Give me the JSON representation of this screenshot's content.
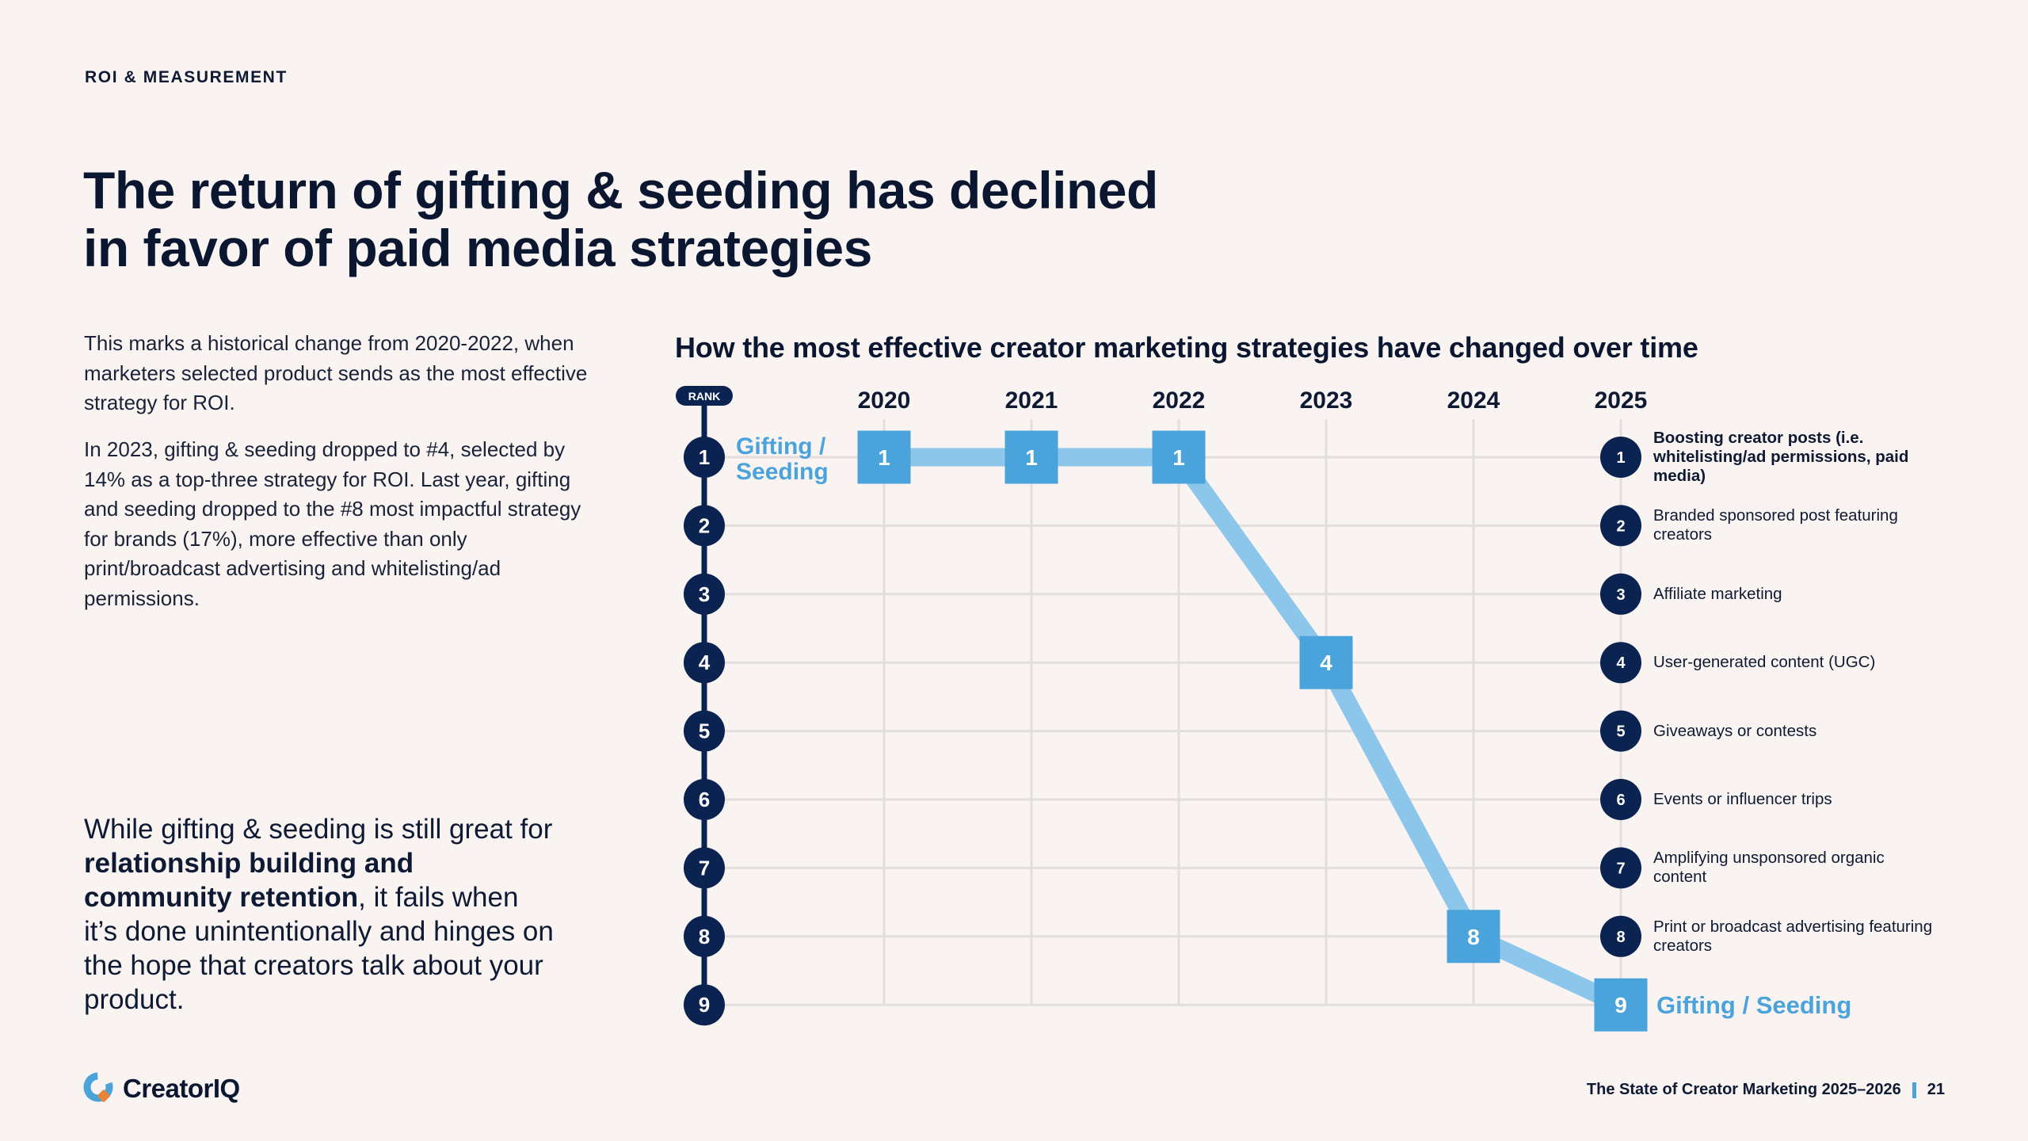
{
  "page": {
    "eyebrow": "ROI & MEASUREMENT",
    "title_line1": "The return of gifting & seeding has declined",
    "title_line2": "in favor of paid media strategies",
    "paragraph1": "This marks a historical change from 2020-2022, when marketers selected product sends as the most effective strategy for ROI.",
    "paragraph2": "In 2023, gifting & seeding dropped to #4, selected by 14% as a top-three strategy for ROI. Last year, gifting and seeding dropped to the #8 most impactful strategy for brands (17%), more effective than only print/broadcast advertising and whitelisting/ad permissions.",
    "callout": {
      "part1": "While gifting & seeding is still great for ",
      "bold": "relationship building and community retention",
      "part2": ", it fails when it’s done unintentionally and hinges on the hope that creators talk about your product."
    },
    "logo_text": "CreatorIQ",
    "footer_text": "The State of Creator Marketing 2025–2026",
    "page_number": "21"
  },
  "colors": {
    "navy": "#0B2350",
    "text": "#0E1A33",
    "square_blue": "#4AA3DB",
    "line_blue": "#8CC6EA",
    "grid": "#E3DEDC",
    "background": "#F9F4F2",
    "logo_orange": "#E8833A"
  },
  "chart_data": {
    "type": "line",
    "title": "How the most effective creator marketing strategies have changed over time",
    "y_axis_label": "RANK",
    "x": [
      "2020",
      "2021",
      "2022",
      "2023",
      "2024",
      "2025"
    ],
    "ylim": [
      1,
      9
    ],
    "y_inverted": true,
    "y_ticks": [
      1,
      2,
      3,
      4,
      5,
      6,
      7,
      8,
      9
    ],
    "grid": true,
    "series": [
      {
        "name": "Gifting / Seeding",
        "values": [
          1,
          1,
          1,
          4,
          8,
          9
        ],
        "start_label": "Gifting / Seeding",
        "end_label": "Gifting / Seeding"
      }
    ],
    "ranking_2025": [
      {
        "rank": 1,
        "label": "Boosting creator posts (i.e. whitelisting/ad permissions, paid media)",
        "emphasis": true
      },
      {
        "rank": 2,
        "label": "Branded sponsored post featuring creators",
        "emphasis": false
      },
      {
        "rank": 3,
        "label": "Affiliate marketing",
        "emphasis": false
      },
      {
        "rank": 4,
        "label": "User-generated content (UGC)",
        "emphasis": false
      },
      {
        "rank": 5,
        "label": "Giveaways or contests",
        "emphasis": false
      },
      {
        "rank": 6,
        "label": "Events or influencer trips",
        "emphasis": false
      },
      {
        "rank": 7,
        "label": "Amplifying unsponsored organic content",
        "emphasis": false
      },
      {
        "rank": 8,
        "label": "Print or broadcast advertising featuring creators",
        "emphasis": false
      }
    ],
    "legend": "right"
  }
}
